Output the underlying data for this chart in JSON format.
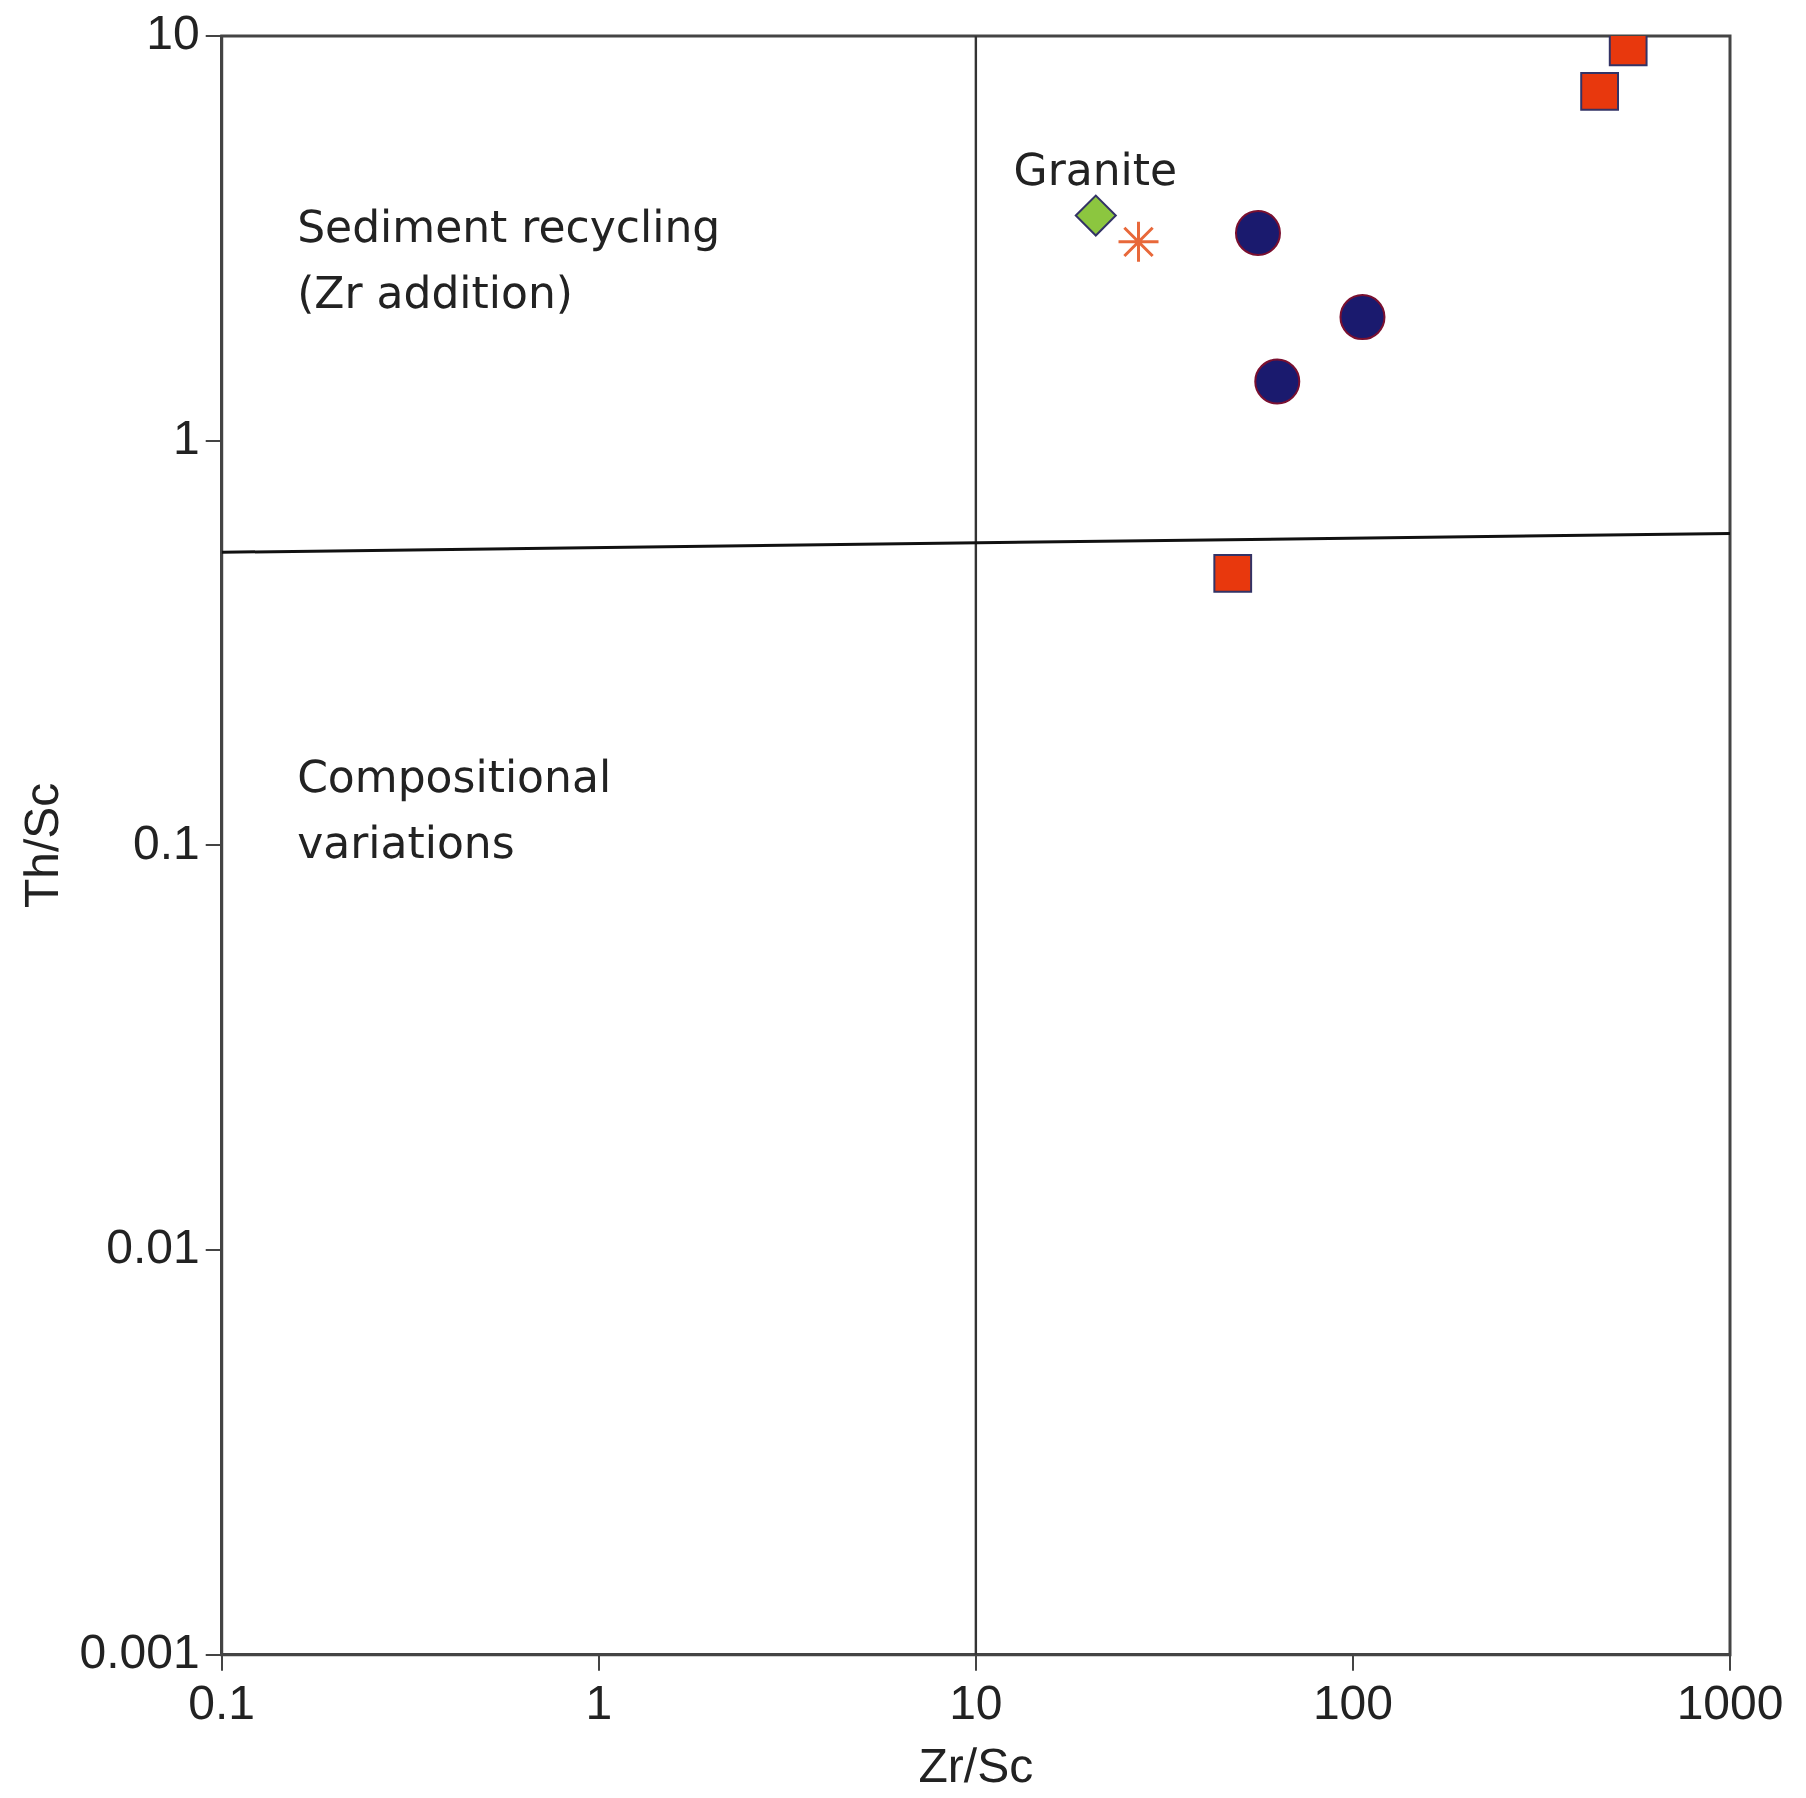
{
  "chart_data": {
    "type": "scatter",
    "xlabel": "Zr/Sc",
    "ylabel": "Th/Sc",
    "log": "xy",
    "grid": false,
    "legend": false,
    "xlim": [
      0.1,
      1000
    ],
    "xticks": [
      0.1,
      1,
      10,
      100,
      1000
    ],
    "ylim": [
      0.001,
      10
    ],
    "yticks": [
      0.001,
      0.01,
      0.1,
      1,
      10
    ],
    "ref_lines": [
      {
        "axis": "x",
        "value": 10,
        "color": "#333333"
      }
    ],
    "annotations": [
      "Granite",
      "Sediment recycling\n(Zr addition)",
      "Compositional\nvariations"
    ],
    "series": [
      {
        "color": "#e8380d",
        "marker": "square",
        "x": [
          537,
          451,
          48
        ],
        "values": [
          9.4,
          7.3,
          0.47
        ]
      },
      {
        "color": "#1a1a6e",
        "marker": "circle",
        "x": [
          56,
          106,
          63
        ],
        "values": [
          3.26,
          2.02,
          1.4
        ]
      },
      {
        "color": "#8cc63f",
        "marker": "diamond",
        "x": [
          20.8
        ],
        "values": [
          3.6
        ]
      },
      {
        "color": "#e8683a",
        "marker": "cross",
        "x": [
          27
        ],
        "values": [
          3.1
        ]
      },
      {
        "type": "line",
        "color": "#111111",
        "marker": "none",
        "x": [
          0.1,
          1000
        ],
        "values": [
          0.53,
          0.59
        ]
      }
    ]
  }
}
